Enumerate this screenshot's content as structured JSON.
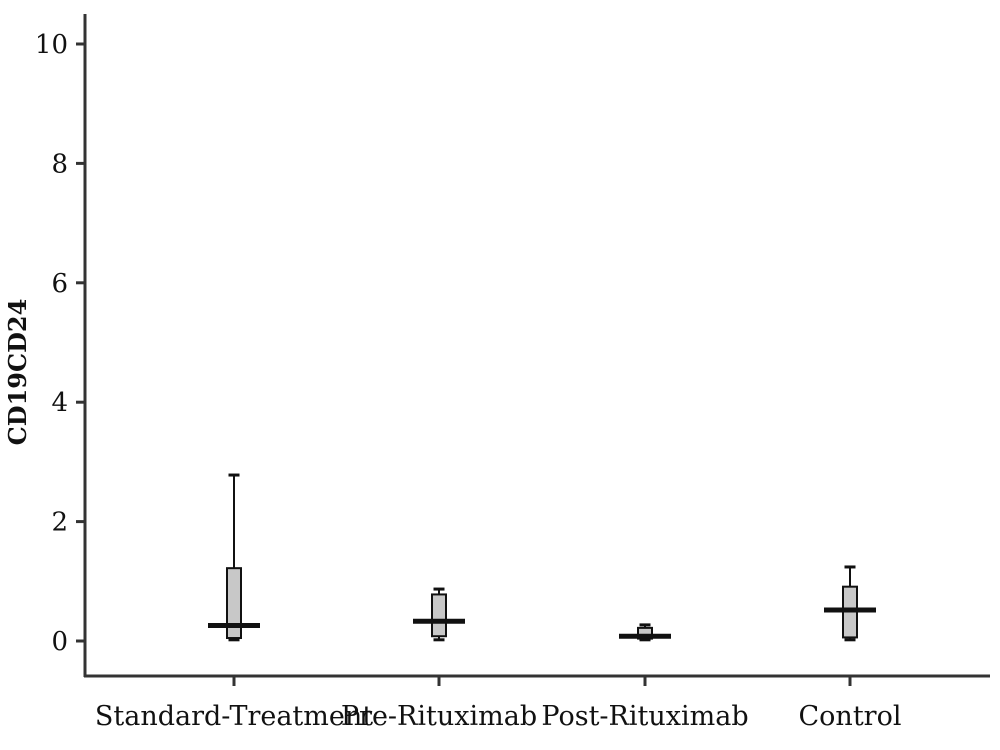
{
  "chart_data": {
    "type": "box",
    "title": "",
    "xlabel": "",
    "ylabel": "CD19CD24",
    "ylim": [
      -0.5,
      10.5
    ],
    "yticks": [
      0,
      2,
      4,
      6,
      8,
      10
    ],
    "grid": false,
    "legend": "none",
    "box_fill": "#c8c8c8",
    "categories": [
      "Standard-Treatment",
      "Pre-Rituximab",
      "Post-Rituximab",
      "Control"
    ],
    "boxes": [
      {
        "category": "Standard-Treatment",
        "min": 0.02,
        "q1": 0.05,
        "median": 0.26,
        "q3": 1.22,
        "max": 2.78
      },
      {
        "category": "Pre-Rituximab",
        "min": 0.02,
        "q1": 0.08,
        "median": 0.33,
        "q3": 0.78,
        "max": 0.87
      },
      {
        "category": "Post-Rituximab",
        "min": 0.02,
        "q1": 0.04,
        "median": 0.08,
        "q3": 0.22,
        "max": 0.27
      },
      {
        "category": "Control",
        "min": 0.02,
        "q1": 0.06,
        "median": 0.52,
        "q3": 0.91,
        "max": 1.24
      }
    ]
  }
}
